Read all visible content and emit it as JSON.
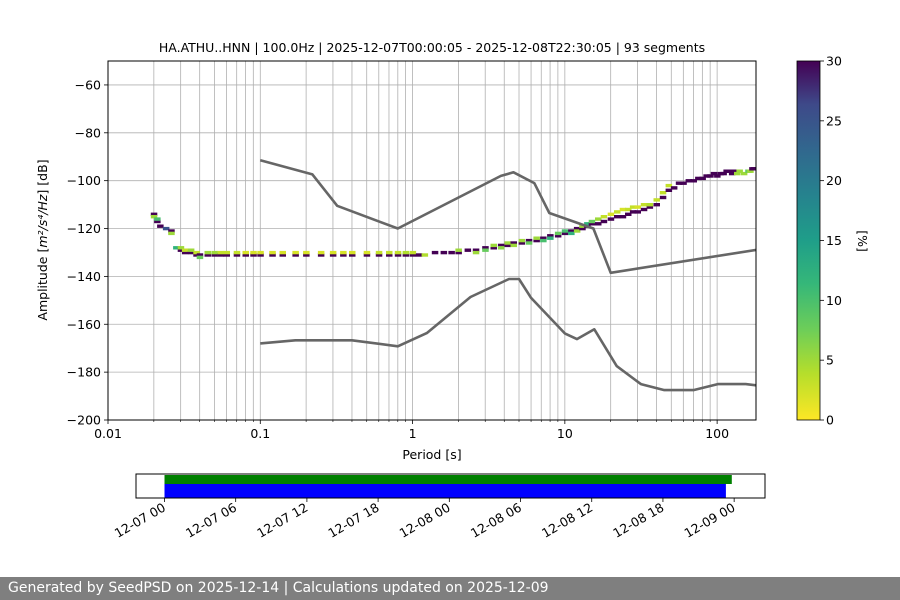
{
  "chart_data": [
    {
      "type": "heatmap",
      "title": "HA.ATHU..HNN | 100.0Hz | 2025-12-07T00:00:05 - 2025-12-08T22:30:05 | 93 segments",
      "xlabel": "Period [s]",
      "ylabel_main": "Amplitude [",
      "ylabel_math": "m²/s⁴/Hz",
      "ylabel_end": "] [dB]",
      "x_scale": "log",
      "xlim": [
        0.01,
        180
      ],
      "ylim": [
        -200,
        -50
      ],
      "x_ticks": [
        {
          "value": 0.01,
          "label": "0.01"
        },
        {
          "value": 0.1,
          "label": "0.1"
        },
        {
          "value": 1,
          "label": "1"
        },
        {
          "value": 10,
          "label": "10"
        },
        {
          "value": 100,
          "label": "100"
        }
      ],
      "y_ticks": [
        {
          "value": -60,
          "label": "−60"
        },
        {
          "value": -80,
          "label": "−80"
        },
        {
          "value": -100,
          "label": "−100"
        },
        {
          "value": -120,
          "label": "−120"
        },
        {
          "value": -140,
          "label": "−140"
        },
        {
          "value": -160,
          "label": "−160"
        },
        {
          "value": -180,
          "label": "−180"
        },
        {
          "value": -200,
          "label": "−200"
        }
      ],
      "grid": true,
      "colorbar": {
        "label": "[%]",
        "min": 0,
        "max": 30,
        "colormap": "viridis_r",
        "ticks": [
          {
            "value": 0,
            "label": "0"
          },
          {
            "value": 5,
            "label": "5"
          },
          {
            "value": 10,
            "label": "10"
          },
          {
            "value": 15,
            "label": "15"
          },
          {
            "value": 20,
            "label": "20"
          },
          {
            "value": 25,
            "label": "25"
          },
          {
            "value": 30,
            "label": "30"
          }
        ]
      },
      "high_noise_model": [
        [
          0.1,
          -91.5
        ],
        [
          0.22,
          -97.4
        ],
        [
          0.32,
          -110.5
        ],
        [
          0.8,
          -120
        ],
        [
          3.8,
          -98
        ],
        [
          4.6,
          -96.5
        ],
        [
          6.3,
          -101
        ],
        [
          7.9,
          -113.5
        ],
        [
          15.4,
          -120
        ],
        [
          20,
          -138.5
        ],
        [
          354,
          -126
        ]
      ],
      "low_noise_model": [
        [
          0.1,
          -168
        ],
        [
          0.17,
          -166.7
        ],
        [
          0.4,
          -166.7
        ],
        [
          0.8,
          -169.2
        ],
        [
          1.24,
          -163.7
        ],
        [
          2.4,
          -148.6
        ],
        [
          4.3,
          -141.1
        ],
        [
          5,
          -141.1
        ],
        [
          6,
          -149
        ],
        [
          10,
          -163.8
        ],
        [
          12,
          -166.2
        ],
        [
          15.6,
          -162.1
        ],
        [
          21.9,
          -177.5
        ],
        [
          31.6,
          -185
        ],
        [
          45,
          -187.5
        ],
        [
          70,
          -187.5
        ],
        [
          101,
          -185
        ],
        [
          154,
          -185
        ],
        [
          328,
          -187.5
        ]
      ],
      "psd_density": [
        [
          0.02,
          -114.0,
          30
        ],
        [
          0.02,
          -115.0,
          5
        ],
        [
          0.021,
          -117.0,
          30
        ],
        [
          0.021,
          -116.0,
          10
        ],
        [
          0.022,
          -119.0,
          30
        ],
        [
          0.024,
          -120.0,
          25
        ],
        [
          0.026,
          -121.0,
          30
        ],
        [
          0.026,
          -122.0,
          5
        ],
        [
          0.028,
          -128.0,
          12
        ],
        [
          0.03,
          -129.0,
          30
        ],
        [
          0.03,
          -128.0,
          5
        ],
        [
          0.032,
          -130.0,
          30
        ],
        [
          0.032,
          -129.0,
          3
        ],
        [
          0.035,
          -130.0,
          30
        ],
        [
          0.035,
          -129.0,
          5
        ],
        [
          0.038,
          -131.0,
          30
        ],
        [
          0.038,
          -130.0,
          3
        ],
        [
          0.04,
          -131.0,
          30
        ],
        [
          0.04,
          -132.0,
          8
        ],
        [
          0.045,
          -131.0,
          30
        ],
        [
          0.045,
          -130.0,
          5
        ],
        [
          0.05,
          -131.0,
          30
        ],
        [
          0.05,
          -130.0,
          5
        ],
        [
          0.055,
          -131.0,
          30
        ],
        [
          0.055,
          -130.0,
          3
        ],
        [
          0.06,
          -131.0,
          30
        ],
        [
          0.06,
          -130.0,
          3
        ],
        [
          0.07,
          -131.0,
          30
        ],
        [
          0.07,
          -130.0,
          3
        ],
        [
          0.08,
          -131.0,
          30
        ],
        [
          0.08,
          -130.0,
          2
        ],
        [
          0.09,
          -131.0,
          30
        ],
        [
          0.09,
          -130.0,
          2
        ],
        [
          0.1,
          -131.0,
          30
        ],
        [
          0.1,
          -130.0,
          2
        ],
        [
          0.12,
          -131.0,
          30
        ],
        [
          0.12,
          -130.0,
          2
        ],
        [
          0.14,
          -131.0,
          30
        ],
        [
          0.14,
          -130.0,
          2
        ],
        [
          0.17,
          -131.0,
          30
        ],
        [
          0.17,
          -130.0,
          2
        ],
        [
          0.2,
          -131.0,
          30
        ],
        [
          0.2,
          -130.0,
          2
        ],
        [
          0.25,
          -131.0,
          30
        ],
        [
          0.25,
          -130.0,
          2
        ],
        [
          0.3,
          -131.0,
          30
        ],
        [
          0.3,
          -130.0,
          2
        ],
        [
          0.35,
          -131.0,
          30
        ],
        [
          0.35,
          -130.0,
          2
        ],
        [
          0.4,
          -131.0,
          30
        ],
        [
          0.4,
          -130.0,
          2
        ],
        [
          0.5,
          -131.0,
          30
        ],
        [
          0.5,
          -130.0,
          2
        ],
        [
          0.6,
          -131.0,
          30
        ],
        [
          0.6,
          -130.0,
          3
        ],
        [
          0.7,
          -131.0,
          30
        ],
        [
          0.7,
          -130.0,
          3
        ],
        [
          0.8,
          -131.0,
          30
        ],
        [
          0.8,
          -130.0,
          3
        ],
        [
          0.9,
          -131.0,
          30
        ],
        [
          0.9,
          -130.0,
          4
        ],
        [
          1.0,
          -131.0,
          30
        ],
        [
          1.0,
          -130.0,
          3
        ],
        [
          1.1,
          -131.0,
          30
        ],
        [
          1.2,
          -131.0,
          4
        ],
        [
          1.4,
          -130.0,
          30
        ],
        [
          1.6,
          -130.0,
          30
        ],
        [
          1.8,
          -130.0,
          30
        ],
        [
          2.0,
          -130.0,
          30
        ],
        [
          2.0,
          -129.0,
          5
        ],
        [
          2.3,
          -129.0,
          30
        ],
        [
          2.6,
          -129.0,
          30
        ],
        [
          2.6,
          -130.0,
          5
        ],
        [
          3.0,
          -128.0,
          30
        ],
        [
          3.0,
          -129.0,
          8
        ],
        [
          3.4,
          -128.0,
          30
        ],
        [
          3.4,
          -127.0,
          5
        ],
        [
          3.8,
          -127.0,
          30
        ],
        [
          3.8,
          -128.0,
          6
        ],
        [
          4.2,
          -127.0,
          30
        ],
        [
          4.2,
          -126.0,
          5
        ],
        [
          4.6,
          -126.0,
          30
        ],
        [
          4.6,
          -127.0,
          5
        ],
        [
          5.2,
          -126.0,
          30
        ],
        [
          5.2,
          -125.0,
          5
        ],
        [
          5.8,
          -125.0,
          30
        ],
        [
          5.8,
          -126.0,
          8
        ],
        [
          6.5,
          -125.0,
          30
        ],
        [
          6.5,
          -124.0,
          5
        ],
        [
          7.2,
          -124.0,
          30
        ],
        [
          7.2,
          -125.0,
          10
        ],
        [
          8.0,
          -123.0,
          30
        ],
        [
          8.0,
          -124.0,
          12
        ],
        [
          9.0,
          -123.0,
          30
        ],
        [
          9.0,
          -122.0,
          8
        ],
        [
          10.0,
          -122.0,
          30
        ],
        [
          10.0,
          -121.0,
          10
        ],
        [
          11.0,
          -121.0,
          30
        ],
        [
          11.0,
          -122.0,
          12
        ],
        [
          12.0,
          -120.0,
          30
        ],
        [
          12.0,
          -121.0,
          5
        ],
        [
          13.0,
          -120.0,
          30
        ],
        [
          13.0,
          -119.0,
          5
        ],
        [
          14.0,
          -119.0,
          30
        ],
        [
          14.0,
          -118.0,
          12
        ],
        [
          15.0,
          -118.0,
          30
        ],
        [
          15.0,
          -117.0,
          8
        ],
        [
          16.5,
          -118.0,
          30
        ],
        [
          16.5,
          -116.0,
          5
        ],
        [
          18.0,
          -117.0,
          30
        ],
        [
          18.0,
          -115.0,
          3
        ],
        [
          20.0,
          -116.0,
          30
        ],
        [
          20.0,
          -114.0,
          2
        ],
        [
          22.0,
          -115.0,
          30
        ],
        [
          22.0,
          -113.0,
          3
        ],
        [
          24.0,
          -115.0,
          30
        ],
        [
          24.0,
          -112.0,
          2
        ],
        [
          26.0,
          -114.0,
          30
        ],
        [
          26.0,
          -112.0,
          3
        ],
        [
          28.0,
          -113.0,
          30
        ],
        [
          28.0,
          -111.0,
          3
        ],
        [
          30.0,
          -113.0,
          30
        ],
        [
          30.0,
          -111.0,
          2
        ],
        [
          33.0,
          -112.0,
          30
        ],
        [
          33.0,
          -110.0,
          3
        ],
        [
          36.0,
          -111.0,
          30
        ],
        [
          36.0,
          -110.0,
          4
        ],
        [
          40.0,
          -110.0,
          30
        ],
        [
          40.0,
          -108.0,
          3
        ],
        [
          44.0,
          -107.0,
          30
        ],
        [
          44.0,
          -105.0,
          3
        ],
        [
          48.0,
          -104.0,
          30
        ],
        [
          48.0,
          -102.0,
          3
        ],
        [
          52.0,
          -103.0,
          30
        ],
        [
          56.0,
          -101.0,
          30
        ],
        [
          60.0,
          -101.0,
          30
        ],
        [
          65.0,
          -100.0,
          30
        ],
        [
          70.0,
          -100.0,
          30
        ],
        [
          75.0,
          -99.0,
          30
        ],
        [
          80.0,
          -99.0,
          30
        ],
        [
          85.0,
          -98.0,
          30
        ],
        [
          90.0,
          -98.0,
          30
        ],
        [
          95.0,
          -97.0,
          30
        ],
        [
          100.0,
          -98.0,
          30
        ],
        [
          105.0,
          -97.0,
          30
        ],
        [
          110.0,
          -97.0,
          30
        ],
        [
          115.0,
          -96.0,
          30
        ],
        [
          120.0,
          -96.0,
          30
        ],
        [
          125.0,
          -97.0,
          30
        ],
        [
          130.0,
          -96.0,
          30
        ],
        [
          135.0,
          -97.0,
          5
        ],
        [
          140.0,
          -96.0,
          5
        ],
        [
          150.0,
          -97.0,
          5
        ],
        [
          160.0,
          -96.0,
          8
        ],
        [
          165.0,
          -96.0,
          5
        ],
        [
          170.0,
          -95.0,
          30
        ],
        [
          175.0,
          -95.0,
          30
        ]
      ]
    },
    {
      "type": "timeline",
      "x_ticks": [
        {
          "hours": 0,
          "label": "12-07 00"
        },
        {
          "hours": 6,
          "label": "12-07 06"
        },
        {
          "hours": 12,
          "label": "12-07 12"
        },
        {
          "hours": 18,
          "label": "12-07 18"
        },
        {
          "hours": 24,
          "label": "12-08 00"
        },
        {
          "hours": 30,
          "label": "12-08 06"
        },
        {
          "hours": 36,
          "label": "12-08 12"
        },
        {
          "hours": 42,
          "label": "12-08 18"
        },
        {
          "hours": 48,
          "label": "12-09 00"
        }
      ],
      "xlim_hours": [
        -2.4,
        50.6
      ],
      "bars": [
        {
          "name": "",
          "color": "#008000",
          "start_hours": 0,
          "end_hours": 47.8,
          "row": "top"
        },
        {
          "name": "",
          "color": "#0000ff",
          "start_hours": 0,
          "end_hours": 47.3,
          "row": "bottom"
        }
      ]
    }
  ],
  "footer": {
    "text": "Generated by SeedPSD on 2025-12-14 | Calculations updated on 2025-12-09"
  }
}
